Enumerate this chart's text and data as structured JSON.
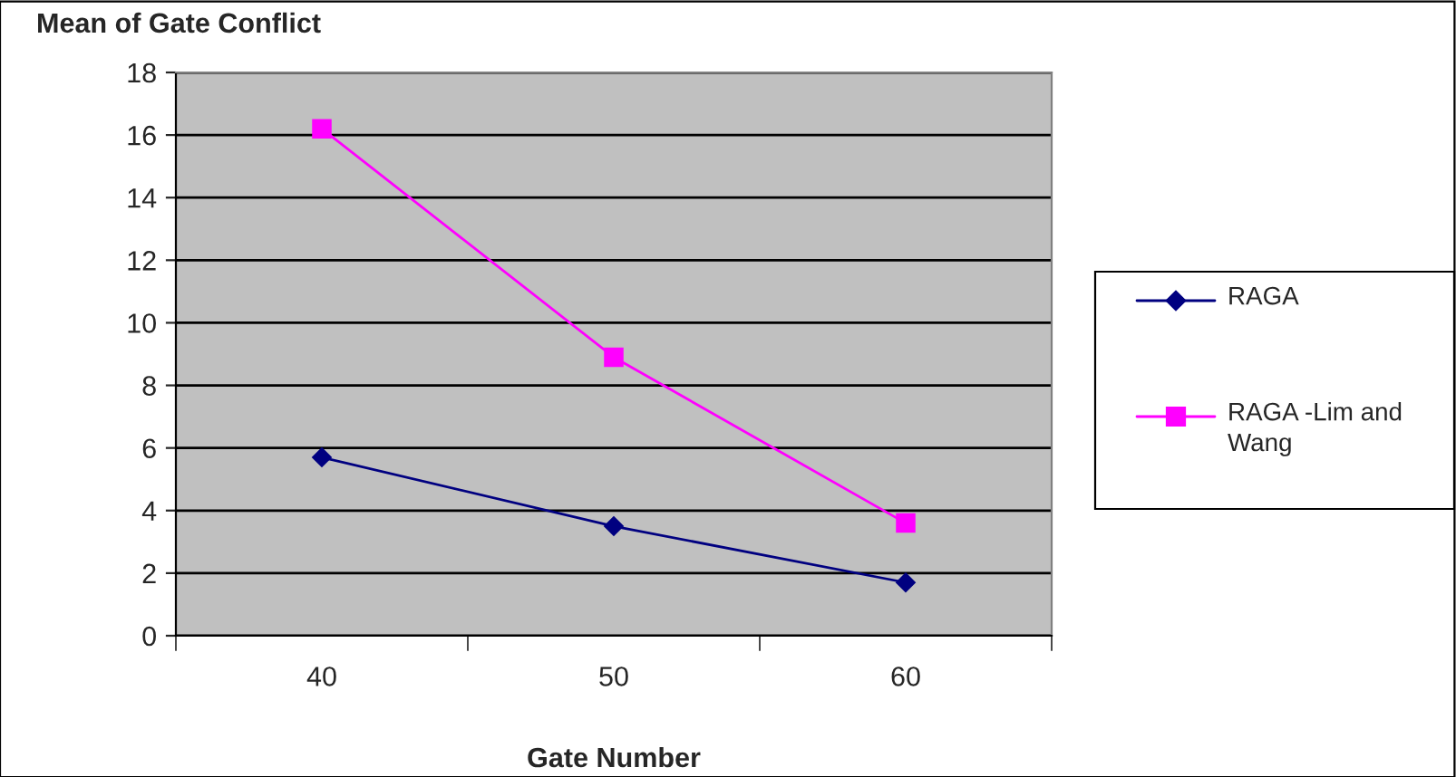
{
  "chart_data": {
    "type": "line",
    "title": "Mean of Gate Conflict",
    "xlabel": "Gate Number",
    "categories": [
      "40",
      "50",
      "60"
    ],
    "series": [
      {
        "name": "RAGA",
        "color": "#000080",
        "marker": "diamond",
        "values": [
          5.7,
          3.5,
          1.7
        ]
      },
      {
        "name": "RAGA -Lim and Wang",
        "color": "#ff00ff",
        "marker": "square",
        "values": [
          16.2,
          8.9,
          3.6
        ]
      }
    ],
    "ylim": [
      0,
      18
    ],
    "yticks": [
      0,
      2,
      4,
      6,
      8,
      10,
      12,
      14,
      16,
      18
    ],
    "grid": "y",
    "legend": "right"
  }
}
